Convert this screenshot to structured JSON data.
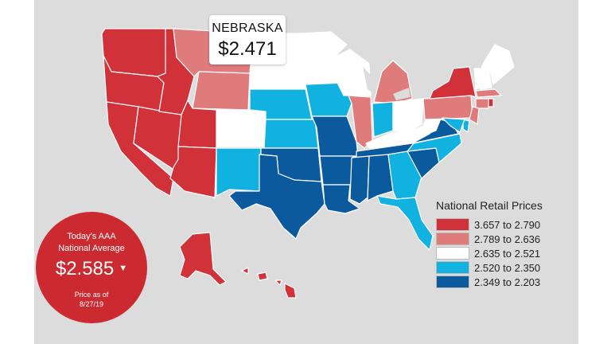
{
  "tooltip": {
    "state": "NEBRASKA",
    "price": "$2.471"
  },
  "national_badge": {
    "title_line1": "Today's AAA",
    "title_line2": "National Average",
    "price": "$2.585",
    "trend_icon": "caret-down-icon",
    "asof_line1": "Price as of",
    "asof_line2": "8/27/19"
  },
  "legend": {
    "title": "National Retail Prices",
    "items": [
      {
        "label": "3.657 to 2.790",
        "color": "#d1323a"
      },
      {
        "label": "2.789 to 2.636",
        "color": "#e07b7c"
      },
      {
        "label": "2.635 to 2.521",
        "color": "#ffffff"
      },
      {
        "label": "2.520 to 2.350",
        "color": "#12b2e0"
      },
      {
        "label": "2.349 to 2.203",
        "color": "#0b5a9e"
      }
    ]
  },
  "colors": {
    "panel_background": "#dcdcdc",
    "badge_background": "#cc2a31",
    "state_border": "#ffffff"
  },
  "states": [
    {
      "id": "WA",
      "tier": 0
    },
    {
      "id": "OR",
      "tier": 0
    },
    {
      "id": "CA",
      "tier": 0
    },
    {
      "id": "NV",
      "tier": 0
    },
    {
      "id": "ID",
      "tier": 0
    },
    {
      "id": "MT",
      "tier": 1
    },
    {
      "id": "WY",
      "tier": 1
    },
    {
      "id": "UT",
      "tier": 0
    },
    {
      "id": "AZ",
      "tier": 0
    },
    {
      "id": "CO",
      "tier": 2
    },
    {
      "id": "NM",
      "tier": 3
    },
    {
      "id": "ND",
      "tier": 2
    },
    {
      "id": "SD",
      "tier": 2
    },
    {
      "id": "NE",
      "tier": 3
    },
    {
      "id": "KS",
      "tier": 3
    },
    {
      "id": "OK",
      "tier": 4
    },
    {
      "id": "TX",
      "tier": 4
    },
    {
      "id": "MN",
      "tier": 2
    },
    {
      "id": "IA",
      "tier": 3
    },
    {
      "id": "MO",
      "tier": 4
    },
    {
      "id": "AR",
      "tier": 4
    },
    {
      "id": "LA",
      "tier": 4
    },
    {
      "id": "WI",
      "tier": 2
    },
    {
      "id": "IL",
      "tier": 1
    },
    {
      "id": "MI",
      "tier": 1
    },
    {
      "id": "IN",
      "tier": 3
    },
    {
      "id": "OH",
      "tier": 2
    },
    {
      "id": "KY",
      "tier": 2
    },
    {
      "id": "TN",
      "tier": 4
    },
    {
      "id": "MS",
      "tier": 4
    },
    {
      "id": "AL",
      "tier": 4
    },
    {
      "id": "GA",
      "tier": 3
    },
    {
      "id": "FL",
      "tier": 3
    },
    {
      "id": "SC",
      "tier": 4
    },
    {
      "id": "NC",
      "tier": 3
    },
    {
      "id": "VA",
      "tier": 4
    },
    {
      "id": "WV",
      "tier": 2
    },
    {
      "id": "PA",
      "tier": 1
    },
    {
      "id": "NY",
      "tier": 0
    },
    {
      "id": "VT",
      "tier": 2
    },
    {
      "id": "NH",
      "tier": 2
    },
    {
      "id": "ME",
      "tier": 2
    },
    {
      "id": "MA",
      "tier": 1
    },
    {
      "id": "CT",
      "tier": 1
    },
    {
      "id": "RI",
      "tier": 0
    },
    {
      "id": "NJ",
      "tier": 1
    },
    {
      "id": "DE",
      "tier": 3
    },
    {
      "id": "MD",
      "tier": 3
    },
    {
      "id": "AK",
      "tier": 0
    },
    {
      "id": "HI",
      "tier": 0
    }
  ]
}
